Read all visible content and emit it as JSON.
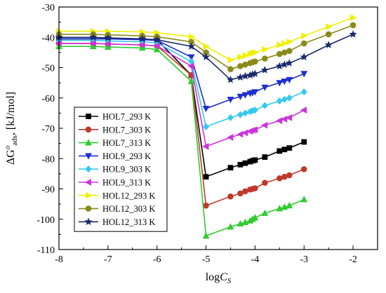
{
  "chart_data": {
    "type": "line",
    "title": "",
    "xlabel": {
      "main": "log",
      "sub": "C",
      "subscript": "S"
    },
    "ylabel": {
      "prefix": "ΔG",
      "sup": "o",
      "sub": "ads",
      "unit": ", [kJ/mol]"
    },
    "xlim": [
      -8,
      -1.5
    ],
    "ylim": [
      -110,
      -30
    ],
    "xticks": [
      -8,
      -7,
      -6,
      -5,
      -4,
      -3,
      -2
    ],
    "yticks": [
      -30,
      -40,
      -50,
      -60,
      -70,
      -80,
      -90,
      -100,
      -110
    ],
    "grid": false,
    "legend_position": "center-left",
    "series": [
      {
        "name": "HOL7_293 K",
        "color": "#000000",
        "marker": "square",
        "x": [
          -8,
          -7.3,
          -7,
          -6.3,
          -6,
          -5.3,
          -5,
          -4.5,
          -4.3,
          -4.2,
          -4.1,
          -4.05,
          -4,
          -3.8,
          -3.5,
          -3.4,
          -3.3,
          -3
        ],
        "y": [
          -40.5,
          -40.5,
          -40.5,
          -40.7,
          -40.8,
          -52.5,
          -86,
          -83,
          -82,
          -81.5,
          -81,
          -80.7,
          -80.5,
          -79.5,
          -77.5,
          -77,
          -76.5,
          -74.5
        ]
      },
      {
        "name": "HOL7_303 K",
        "color": "#c0392b",
        "marker": "circle",
        "x": [
          -8,
          -7.3,
          -7,
          -6.3,
          -6,
          -5.3,
          -5,
          -4.5,
          -4.3,
          -4.2,
          -4.1,
          -4.05,
          -4,
          -3.8,
          -3.5,
          -3.4,
          -3.3,
          -3
        ],
        "y": [
          -42,
          -42,
          -42.2,
          -42.5,
          -42.8,
          -52.5,
          -95.5,
          -92.5,
          -91.5,
          -90.8,
          -90.2,
          -90,
          -89.8,
          -88,
          -86.5,
          -86,
          -85.5,
          -83.5
        ]
      },
      {
        "name": "HOL7_313 K",
        "color": "#2ecc2e",
        "marker": "triangle-up",
        "x": [
          -8,
          -7.3,
          -7,
          -6.3,
          -6,
          -5.3,
          -5,
          -4.5,
          -4.3,
          -4.2,
          -4.1,
          -4.05,
          -4,
          -3.8,
          -3.5,
          -3.4,
          -3.3,
          -3
        ],
        "y": [
          -43,
          -43,
          -43.2,
          -43.5,
          -44,
          -54.5,
          -105.5,
          -102.5,
          -101.5,
          -101,
          -100.5,
          -100,
          -99.5,
          -98,
          -96.5,
          -96,
          -95.5,
          -93.5
        ]
      },
      {
        "name": "HOL9_293 K",
        "color": "#1f2fd0",
        "marker": "triangle-down",
        "x": [
          -8,
          -7.3,
          -7,
          -6.3,
          -6,
          -5.3,
          -5,
          -4.5,
          -4.3,
          -4.2,
          -4.1,
          -4.05,
          -4,
          -3.8,
          -3.5,
          -3.4,
          -3.3,
          -3
        ],
        "y": [
          -40.5,
          -40.5,
          -40.5,
          -40.8,
          -41,
          -46.5,
          -63.5,
          -60.5,
          -59.5,
          -59,
          -58.5,
          -58.3,
          -58,
          -56.5,
          -55,
          -54.5,
          -54,
          -52
        ]
      },
      {
        "name": "HOL9_303 K",
        "color": "#37c8f0",
        "marker": "diamond",
        "x": [
          -8,
          -7.3,
          -7,
          -6.3,
          -6,
          -5.3,
          -5,
          -4.5,
          -4.3,
          -4.2,
          -4.1,
          -4.05,
          -4,
          -3.8,
          -3.5,
          -3.4,
          -3.3,
          -3
        ],
        "y": [
          -41,
          -41,
          -41.2,
          -41.5,
          -41.8,
          -48,
          -69.5,
          -66.5,
          -65.5,
          -65,
          -64.5,
          -64.2,
          -64,
          -62.5,
          -61,
          -60.5,
          -60,
          -58
        ]
      },
      {
        "name": "HOL9_313 K",
        "color": "#cc33dd",
        "marker": "triangle-left",
        "x": [
          -8,
          -7.3,
          -7,
          -6.3,
          -6,
          -5.3,
          -5,
          -4.5,
          -4.3,
          -4.2,
          -4.1,
          -4.05,
          -4,
          -3.8,
          -3.5,
          -3.4,
          -3.3,
          -3
        ],
        "y": [
          -42,
          -42,
          -42.2,
          -42.5,
          -42.8,
          -49.5,
          -76,
          -73,
          -72,
          -71.5,
          -71,
          -70.7,
          -70.5,
          -69,
          -67.5,
          -67,
          -66.5,
          -64
        ]
      },
      {
        "name": "HOL12_293 K",
        "color": "#f0f000",
        "marker": "triangle-right",
        "x": [
          -8,
          -7.3,
          -7,
          -6.3,
          -6,
          -5.3,
          -5,
          -4.5,
          -4.3,
          -4.2,
          -4.1,
          -4.05,
          -4,
          -3.8,
          -3.5,
          -3.4,
          -3.3,
          -3,
          -2.5,
          -2
        ],
        "y": [
          -38,
          -38,
          -38,
          -38.2,
          -38.5,
          -39.8,
          -43,
          -47.5,
          -46.5,
          -46,
          -45.5,
          -45.2,
          -45,
          -44,
          -42.5,
          -42,
          -41.5,
          -39.5,
          -36.5,
          -33.5
        ]
      },
      {
        "name": "HOL12_303 K",
        "color": "#8a8a1a",
        "marker": "circle",
        "x": [
          -8,
          -7.3,
          -7,
          -6.3,
          -6,
          -5.3,
          -5,
          -4.5,
          -4.3,
          -4.2,
          -4.1,
          -4.05,
          -4,
          -3.8,
          -3.5,
          -3.4,
          -3.3,
          -3,
          -2.5,
          -2
        ],
        "y": [
          -39,
          -39,
          -39.2,
          -39.5,
          -39.8,
          -41.5,
          -45,
          -50.5,
          -49.5,
          -49,
          -48.5,
          -48.2,
          -48,
          -47,
          -45.5,
          -45,
          -44.5,
          -42,
          -39,
          -36
        ]
      },
      {
        "name": "HOL12_313 K",
        "color": "#1a2a6c",
        "marker": "star",
        "x": [
          -8,
          -7.3,
          -7,
          -6.3,
          -6,
          -5.3,
          -5,
          -4.5,
          -4.3,
          -4.2,
          -4.1,
          -4.05,
          -4,
          -3.8,
          -3.5,
          -3.4,
          -3.3,
          -3,
          -2.5,
          -2
        ],
        "y": [
          -40,
          -40,
          -40.2,
          -40.5,
          -40.8,
          -43,
          -46.5,
          -54,
          -53.2,
          -52.8,
          -52.5,
          -52.2,
          -52,
          -50.8,
          -49.5,
          -49,
          -48.5,
          -46.5,
          -42.5,
          -39
        ]
      }
    ]
  }
}
